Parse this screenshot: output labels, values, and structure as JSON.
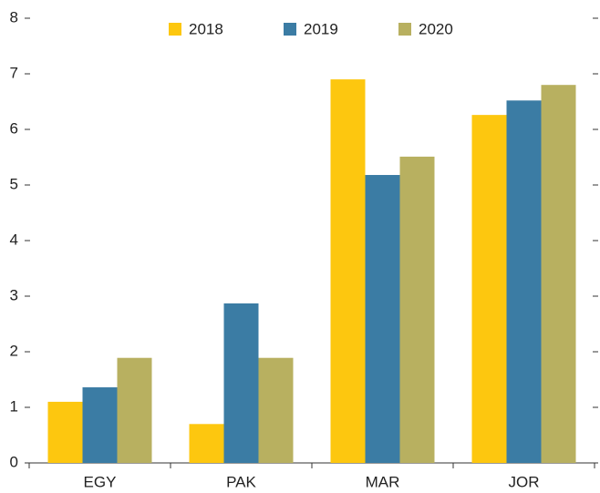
{
  "chart_data": {
    "type": "bar",
    "categories": [
      "EGY",
      "PAK",
      "MAR",
      "JOR"
    ],
    "series": [
      {
        "name": "2018",
        "color": "#fdc70f",
        "values": [
          1.1,
          0.7,
          6.9,
          6.26
        ]
      },
      {
        "name": "2019",
        "color": "#3b7ca4",
        "values": [
          1.36,
          2.87,
          5.18,
          6.52
        ]
      },
      {
        "name": "2020",
        "color": "#b8b060",
        "values": [
          1.89,
          1.89,
          5.51,
          6.8
        ]
      }
    ],
    "ylim": [
      0,
      8
    ],
    "yticks": [
      0,
      1,
      2,
      3,
      4,
      5,
      6,
      7,
      8
    ],
    "legend": "top"
  }
}
